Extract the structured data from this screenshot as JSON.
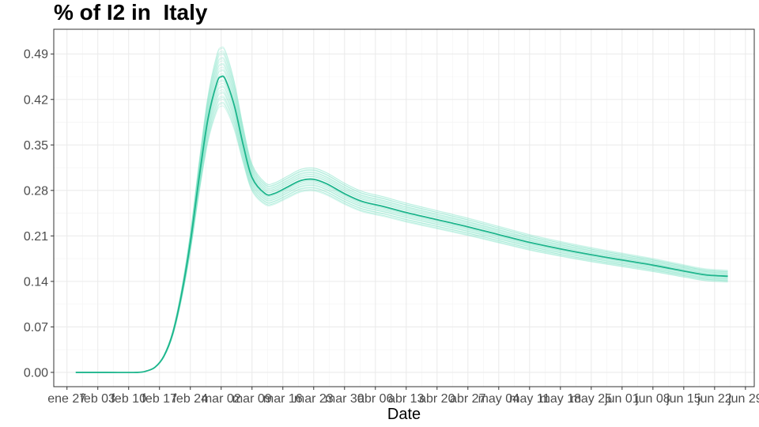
{
  "chart_data": {
    "type": "line",
    "title": "% of I2 in  Italy",
    "xlabel": "Date",
    "ylabel": "",
    "x_ticks": [
      "ene 27",
      "feb 03",
      "feb 10",
      "feb 17",
      "feb 24",
      "mar 02",
      "mar 09",
      "mar 16",
      "mar 23",
      "mar 30",
      "abr 06",
      "abr 13",
      "abr 20",
      "abr 27",
      "may 04",
      "may 11",
      "may 18",
      "may 25",
      "jun 01",
      "jun 08",
      "jun 15",
      "jun 22",
      "jun 29"
    ],
    "y_ticks": [
      "0.00",
      "0.07",
      "0.14",
      "0.21",
      "0.28",
      "0.35",
      "0.42",
      "0.49"
    ],
    "ylim": [
      -0.022,
      0.528
    ],
    "xlim": [
      "2020-01-24",
      "2020-07-01"
    ],
    "grid": true,
    "colors": {
      "mean_line": "#1db58c",
      "ensemble": "#7fe3c6"
    },
    "series": [
      {
        "role": "mean",
        "x": [
          "2020-01-29",
          "2020-02-05",
          "2020-02-12",
          "2020-02-14",
          "2020-02-16",
          "2020-02-18",
          "2020-02-20",
          "2020-02-22",
          "2020-02-24",
          "2020-02-26",
          "2020-02-28",
          "2020-03-01",
          "2020-03-02",
          "2020-03-03",
          "2020-03-05",
          "2020-03-07",
          "2020-03-09",
          "2020-03-12",
          "2020-03-14",
          "2020-03-17",
          "2020-03-20",
          "2020-03-23",
          "2020-03-26",
          "2020-03-30",
          "2020-04-03",
          "2020-04-08",
          "2020-04-13",
          "2020-04-20",
          "2020-04-27",
          "2020-05-04",
          "2020-05-11",
          "2020-05-18",
          "2020-05-25",
          "2020-06-01",
          "2020-06-08",
          "2020-06-15",
          "2020-06-20",
          "2020-06-25"
        ],
        "y": [
          0.0,
          0.0,
          0.0,
          0.002,
          0.008,
          0.025,
          0.06,
          0.12,
          0.2,
          0.3,
          0.39,
          0.445,
          0.455,
          0.45,
          0.41,
          0.35,
          0.3,
          0.275,
          0.275,
          0.285,
          0.295,
          0.297,
          0.29,
          0.275,
          0.263,
          0.255,
          0.246,
          0.235,
          0.224,
          0.212,
          0.2,
          0.19,
          0.181,
          0.173,
          0.165,
          0.156,
          0.15,
          0.148
        ]
      }
    ]
  }
}
